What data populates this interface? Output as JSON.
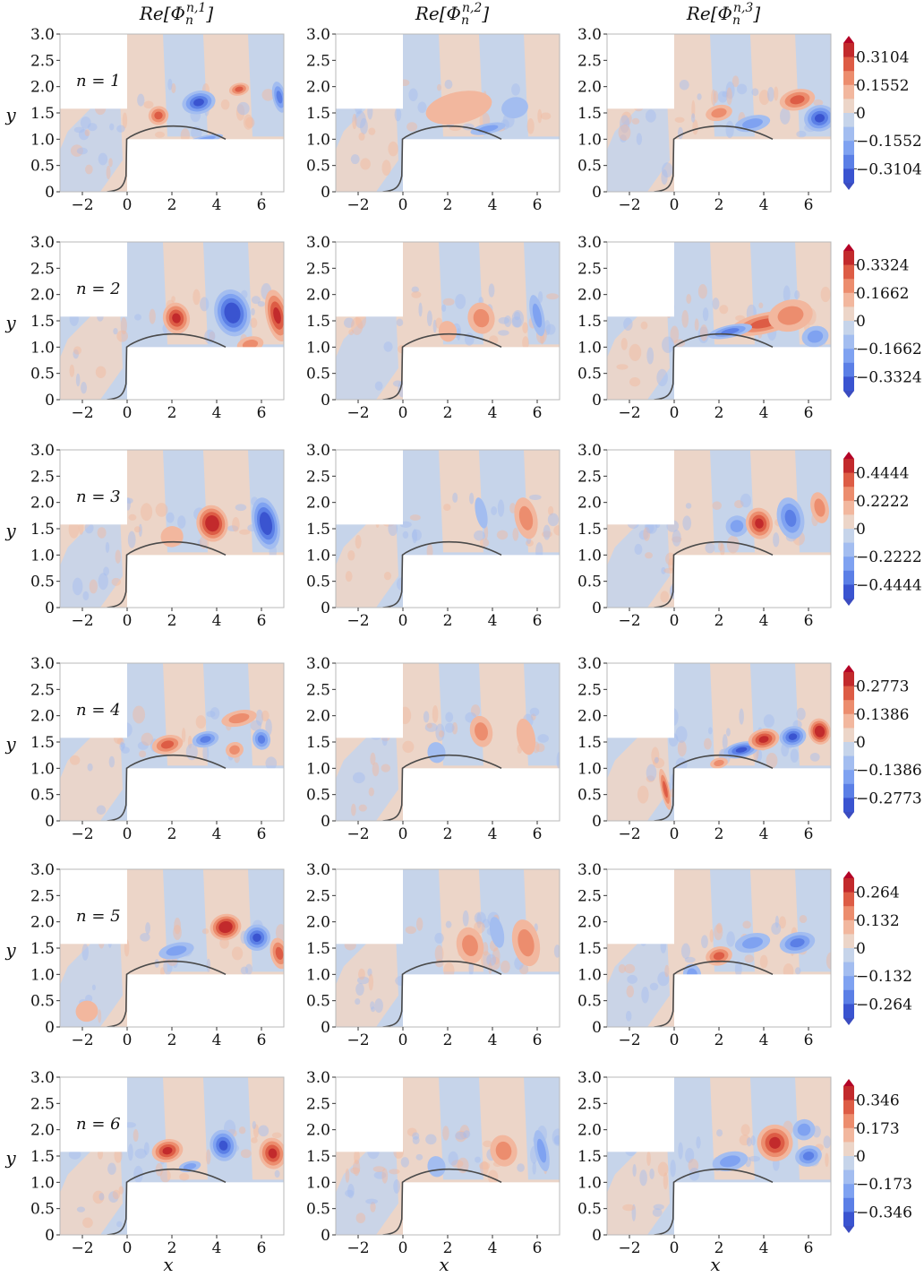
{
  "chart_data": {
    "type": "heatmap",
    "column_titles": [
      {
        "base": "Re[Φ",
        "sub": "n",
        "sup": "n,1",
        "close": "]"
      },
      {
        "base": "Re[Φ",
        "sub": "n",
        "sup": "n,2",
        "close": "]"
      },
      {
        "base": "Re[Φ",
        "sub": "n",
        "sup": "n,3",
        "close": "]"
      }
    ],
    "xlabel": "x",
    "ylabel": "y",
    "xlim": [
      -3,
      7
    ],
    "ylim": [
      0,
      3
    ],
    "x_ticks": [
      "−2",
      "0",
      "2",
      "4",
      "6"
    ],
    "x_tick_values": [
      -2,
      0,
      2,
      4,
      6
    ],
    "y_ticks": [
      "0",
      "0.5",
      "1.0",
      "1.5",
      "2.0",
      "2.5",
      "3.0"
    ],
    "y_tick_values": [
      0,
      0.5,
      1.0,
      1.5,
      2.0,
      2.5,
      3.0
    ],
    "colormap": "coolwarm",
    "colors": {
      "blue": "#3b4cc0",
      "red": "#b40426",
      "neutral": "#dddcdc",
      "axis": "#aaaaaa",
      "curve": "#4a4a4a"
    },
    "rows": [
      {
        "label": "n = 1",
        "cbar_ticks": [
          "0.3104",
          "0.1552",
          "0",
          "−0.1552",
          "−0.3104"
        ],
        "cbar_max": 0.3104
      },
      {
        "label": "n = 2",
        "cbar_ticks": [
          "0.3324",
          "0.1662",
          "0",
          "−0.1662",
          "−0.3324"
        ],
        "cbar_max": 0.3324
      },
      {
        "label": "n = 3",
        "cbar_ticks": [
          "0.4444",
          "0.2222",
          "0",
          "−0.2222",
          "−0.4444"
        ],
        "cbar_max": 0.4444
      },
      {
        "label": "n = 4",
        "cbar_ticks": [
          "0.2773",
          "0.1386",
          "0",
          "−0.1386",
          "−0.2773"
        ],
        "cbar_max": 0.2773
      },
      {
        "label": "n = 5",
        "cbar_ticks": [
          "0.264",
          "0.132",
          "0",
          "−0.132",
          "−0.264"
        ],
        "cbar_max": 0.264
      },
      {
        "label": "n = 6",
        "cbar_ticks": [
          "0.346",
          "0.173",
          "0",
          "−0.173",
          "−0.346"
        ],
        "cbar_max": 0.346
      }
    ]
  }
}
